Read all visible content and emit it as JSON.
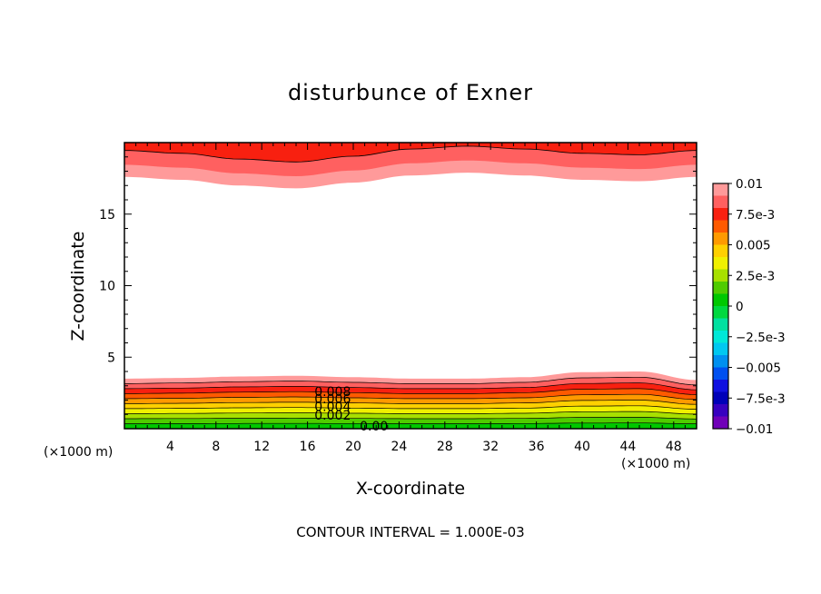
{
  "chart_data": {
    "type": "contour",
    "title": "disturbunce of Exner",
    "xlabel": "X-coordinate",
    "ylabel": "Z-coordinate",
    "x_unit_label": "(×1000 m)",
    "x_unit_label_right": "(×1000 m)",
    "footer": "CONTOUR INTERVAL = 1.000E-03",
    "xlim": [
      0,
      50
    ],
    "ylim": [
      0,
      20
    ],
    "x_ticks": [
      4,
      8,
      12,
      16,
      20,
      24,
      28,
      32,
      36,
      40,
      44,
      48
    ],
    "x_tick_labels": [
      "4",
      "8",
      "12",
      "16",
      "20",
      "24",
      "28",
      "32",
      "36",
      "40",
      "44",
      "48"
    ],
    "y_ticks": [
      5,
      10,
      15
    ],
    "y_tick_labels": [
      "5",
      "10",
      "15"
    ],
    "contour_interval": 0.001,
    "contour_labels": [
      {
        "text": "0.008",
        "x": 18.2,
        "z": 2.6
      },
      {
        "text": "0.006",
        "x": 18.2,
        "z": 2.1
      },
      {
        "text": "0.004",
        "x": 18.2,
        "z": 1.55
      },
      {
        "text": "0.002",
        "x": 18.2,
        "z": 0.95
      },
      {
        "text": "0.00",
        "x": 21.8,
        "z": 0.2
      }
    ],
    "colorbar": {
      "min": -0.01,
      "max": 0.01,
      "tick_labels": [
        "0.01",
        "7.5e-3",
        "0.005",
        "2.5e-3",
        "0",
        "−2.5e-3",
        "−0.005",
        "−7.5e-3",
        "−0.01"
      ],
      "colors": [
        "#ff9a9a",
        "#ff6060",
        "#f82010",
        "#ff5a00",
        "#ff9a00",
        "#ffd000",
        "#f0f000",
        "#a8e000",
        "#50cc00",
        "#00c800",
        "#00d840",
        "#00e0a0",
        "#00e8d8",
        "#00c8f0",
        "#0090f0",
        "#0050f0",
        "#1010e0",
        "#0000b8",
        "#3800c0",
        "#7000b8"
      ]
    },
    "upper_band_boundary_z": [
      17.6,
      17.4,
      17.0,
      16.8,
      17.2,
      17.7,
      17.9,
      17.7,
      17.4,
      17.3,
      17.6
    ],
    "lower_band_top_z": [
      3.5,
      3.55,
      3.65,
      3.7,
      3.6,
      3.5,
      3.5,
      3.6,
      3.95,
      4.0,
      3.4
    ]
  }
}
